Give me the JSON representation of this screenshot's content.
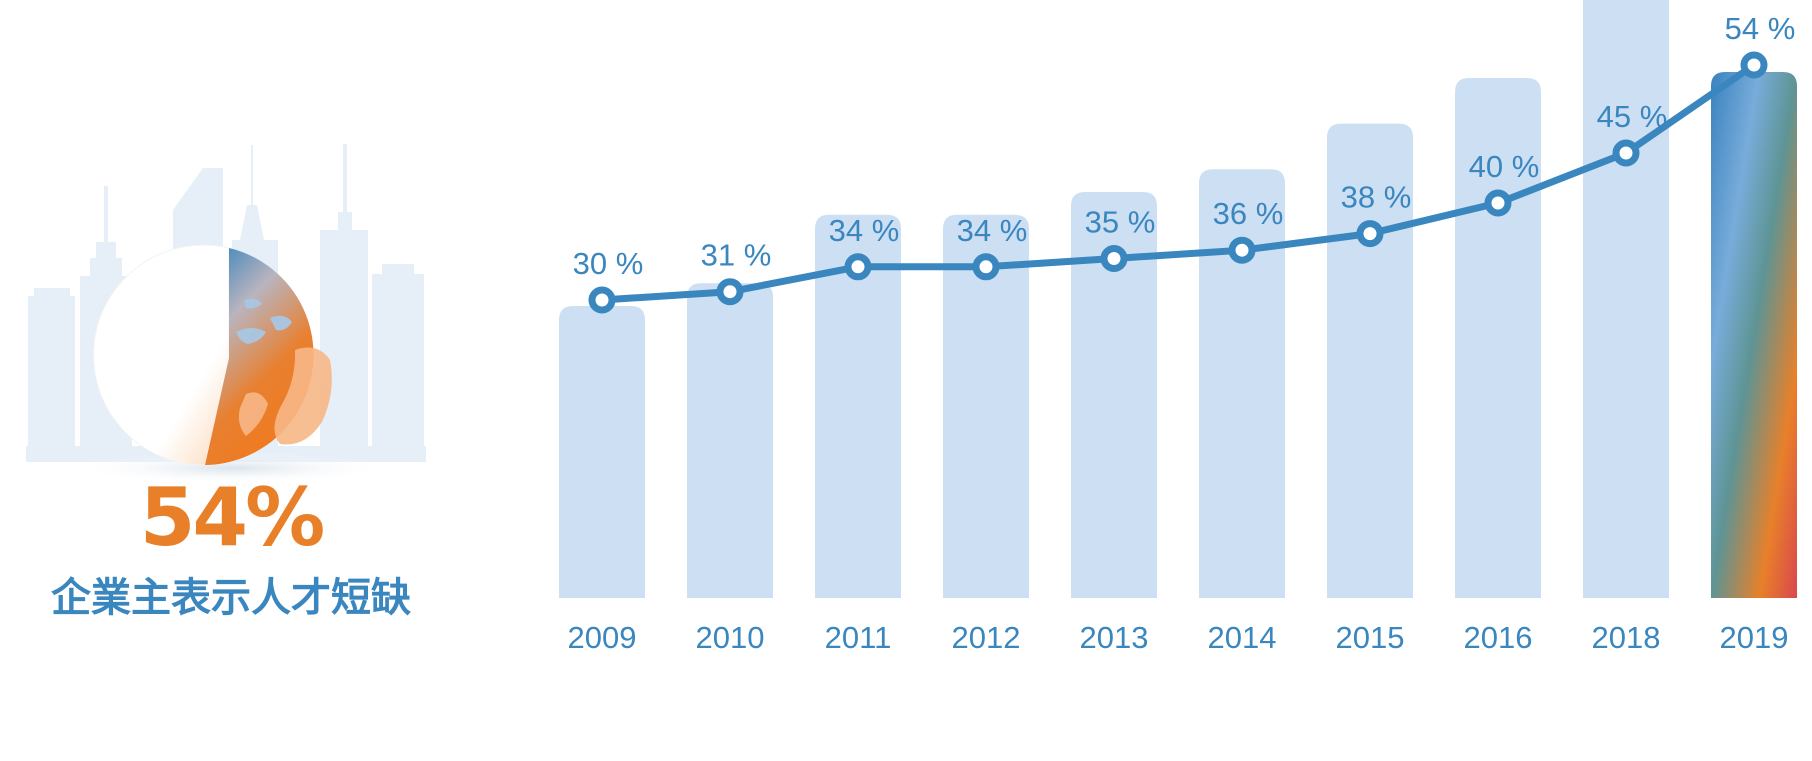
{
  "colors": {
    "bar": "#cddff2",
    "line": "#3a86bf",
    "text": "#3a86bf",
    "accent": "#e8802a",
    "skyline": "#e6eef8"
  },
  "infographic": {
    "percent": "54%",
    "caption": "企業主表示人才短缺",
    "icon": "globe-pie-icon"
  },
  "chart_data": {
    "type": "bar",
    "categories": [
      "2009",
      "2010",
      "2011",
      "2012",
      "2013",
      "2014",
      "2015",
      "2016",
      "2018",
      "2019"
    ],
    "values": [
      30,
      31,
      34,
      34,
      35,
      36,
      38,
      40,
      45,
      54
    ],
    "labels": [
      "30 %",
      "31 %",
      "34 %",
      "34 %",
      "35 %",
      "36 %",
      "38 %",
      "40 %",
      "45 %",
      "54 %"
    ],
    "overlay": "line",
    "title": "",
    "xlabel": "",
    "ylabel": "",
    "grid": false,
    "legend": "none"
  }
}
